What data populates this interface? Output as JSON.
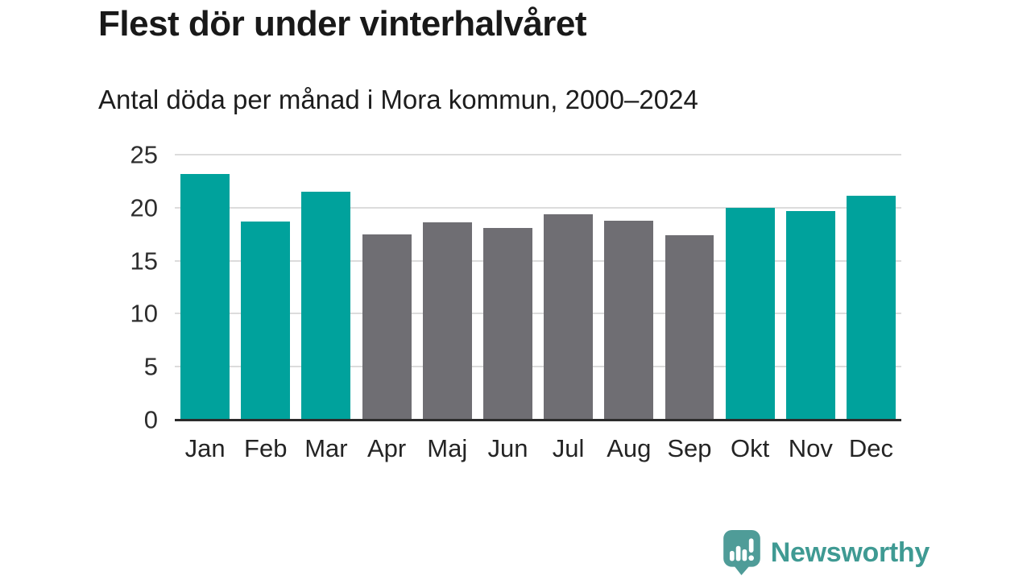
{
  "chart_data": {
    "type": "bar",
    "title": "Flest dör under vinterhalvåret",
    "subtitle": "Antal döda per månad i Mora kommun, 2000–2024",
    "categories": [
      "Jan",
      "Feb",
      "Mar",
      "Apr",
      "Maj",
      "Jun",
      "Jul",
      "Aug",
      "Sep",
      "Okt",
      "Nov",
      "Dec"
    ],
    "values": [
      23.2,
      18.7,
      21.5,
      17.5,
      18.6,
      18.1,
      19.4,
      18.8,
      17.4,
      20.0,
      19.7,
      21.1
    ],
    "highlighted_categories": [
      "Jan",
      "Feb",
      "Mar",
      "Okt",
      "Nov",
      "Dec"
    ],
    "highlight_color": "#00a29c",
    "base_color": "#6f6e73",
    "xlabel": "",
    "ylabel": "",
    "ylim": [
      0,
      25
    ],
    "yticks": [
      0,
      5,
      10,
      15,
      20,
      25
    ],
    "grid": "horizontal",
    "legend": "none",
    "gridline_color": "#dcdcdc",
    "axis_line_color": "#2b2b2b"
  },
  "branding": {
    "name": "Newsworthy",
    "logo_color": "#4f9c98",
    "text_color": "#3f9a93"
  }
}
